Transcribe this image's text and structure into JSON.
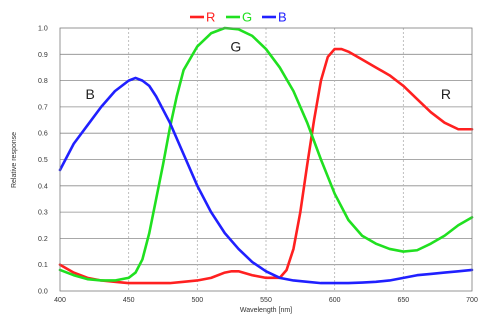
{
  "chart_data": {
    "type": "line",
    "title": "",
    "xlabel": "Wavelength [nm]",
    "ylabel": "Relative response",
    "xlim": [
      400,
      700
    ],
    "ylim": [
      0,
      1.0
    ],
    "grid": true,
    "x_ticks": [
      "400",
      "450",
      "500",
      "550",
      "600",
      "650",
      "700"
    ],
    "y_ticks": [
      "0.0",
      "0.1",
      "0.2",
      "0.3",
      "0.4",
      "0.5",
      "0.6",
      "0.7",
      "0.8",
      "0.9",
      "1.0"
    ],
    "legend_position": "top-center",
    "legend": [
      {
        "label": "R",
        "color": "#ff2020"
      },
      {
        "label": "G",
        "color": "#20e020"
      },
      {
        "label": "B",
        "color": "#2020ff"
      }
    ],
    "annotations": [
      {
        "text": "B",
        "x": 422,
        "y": 0.73
      },
      {
        "text": "G",
        "x": 528,
        "y": 0.91
      },
      {
        "text": "R",
        "x": 681,
        "y": 0.73
      }
    ],
    "series": [
      {
        "name": "R",
        "color": "#ff2020",
        "x": [
          400,
          410,
          420,
          430,
          440,
          450,
          460,
          470,
          480,
          490,
          500,
          510,
          520,
          525,
          530,
          540,
          550,
          560,
          565,
          570,
          575,
          580,
          585,
          590,
          595,
          600,
          605,
          610,
          620,
          630,
          640,
          650,
          660,
          670,
          680,
          690,
          700
        ],
        "y": [
          0.1,
          0.07,
          0.05,
          0.04,
          0.035,
          0.03,
          0.03,
          0.03,
          0.03,
          0.035,
          0.04,
          0.05,
          0.07,
          0.075,
          0.075,
          0.06,
          0.05,
          0.05,
          0.08,
          0.16,
          0.3,
          0.48,
          0.65,
          0.8,
          0.89,
          0.92,
          0.92,
          0.91,
          0.88,
          0.85,
          0.82,
          0.78,
          0.73,
          0.68,
          0.64,
          0.615,
          0.615
        ]
      },
      {
        "name": "G",
        "color": "#20e020",
        "x": [
          400,
          410,
          420,
          430,
          440,
          450,
          455,
          460,
          465,
          470,
          475,
          480,
          485,
          490,
          500,
          510,
          520,
          530,
          540,
          550,
          560,
          570,
          580,
          590,
          600,
          610,
          620,
          630,
          640,
          650,
          660,
          670,
          680,
          690,
          700
        ],
        "y": [
          0.08,
          0.06,
          0.045,
          0.04,
          0.04,
          0.05,
          0.07,
          0.12,
          0.22,
          0.35,
          0.48,
          0.62,
          0.74,
          0.84,
          0.93,
          0.98,
          1.0,
          0.995,
          0.97,
          0.92,
          0.85,
          0.76,
          0.64,
          0.5,
          0.37,
          0.27,
          0.21,
          0.18,
          0.16,
          0.15,
          0.155,
          0.18,
          0.21,
          0.25,
          0.28
        ]
      },
      {
        "name": "B",
        "color": "#2020ff",
        "x": [
          400,
          410,
          420,
          430,
          440,
          450,
          455,
          460,
          465,
          470,
          480,
          490,
          500,
          510,
          520,
          530,
          540,
          550,
          560,
          570,
          580,
          590,
          600,
          610,
          620,
          630,
          640,
          650,
          660,
          670,
          680,
          690,
          700
        ],
        "y": [
          0.46,
          0.56,
          0.63,
          0.7,
          0.76,
          0.8,
          0.81,
          0.8,
          0.78,
          0.74,
          0.64,
          0.52,
          0.4,
          0.3,
          0.22,
          0.16,
          0.11,
          0.075,
          0.05,
          0.04,
          0.035,
          0.03,
          0.03,
          0.03,
          0.032,
          0.035,
          0.04,
          0.05,
          0.06,
          0.065,
          0.07,
          0.075,
          0.08
        ]
      }
    ]
  }
}
